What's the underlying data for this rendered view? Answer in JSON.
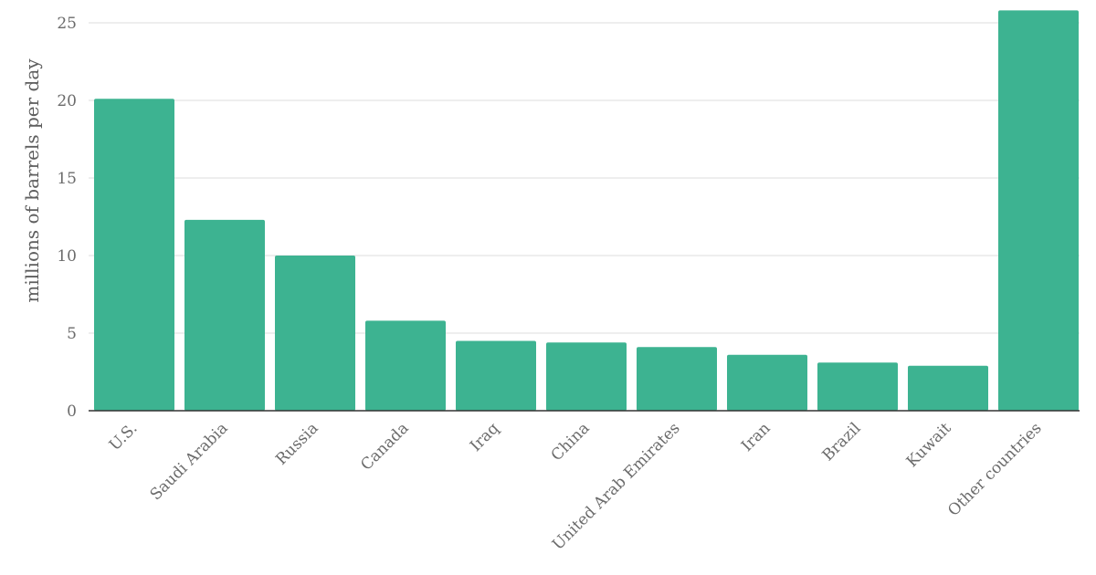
{
  "chart_data": {
    "type": "bar",
    "categories": [
      "U.S.",
      "Saudi Arabia",
      "Russia",
      "Canada",
      "Iraq",
      "China",
      "United Arab Emirates",
      "Iran",
      "Brazil",
      "Kuwait",
      "Other countries"
    ],
    "values": [
      20.1,
      12.3,
      10.0,
      5.8,
      4.5,
      4.4,
      4.1,
      3.6,
      3.1,
      2.9,
      25.8
    ],
    "title": "",
    "xlabel": "",
    "ylabel": "millions of barrels per day",
    "ylim": [
      0,
      26
    ],
    "yticks": [
      0,
      5,
      10,
      15,
      20,
      25
    ],
    "grid": true,
    "legend": "none",
    "bar_color": "#3db391"
  }
}
